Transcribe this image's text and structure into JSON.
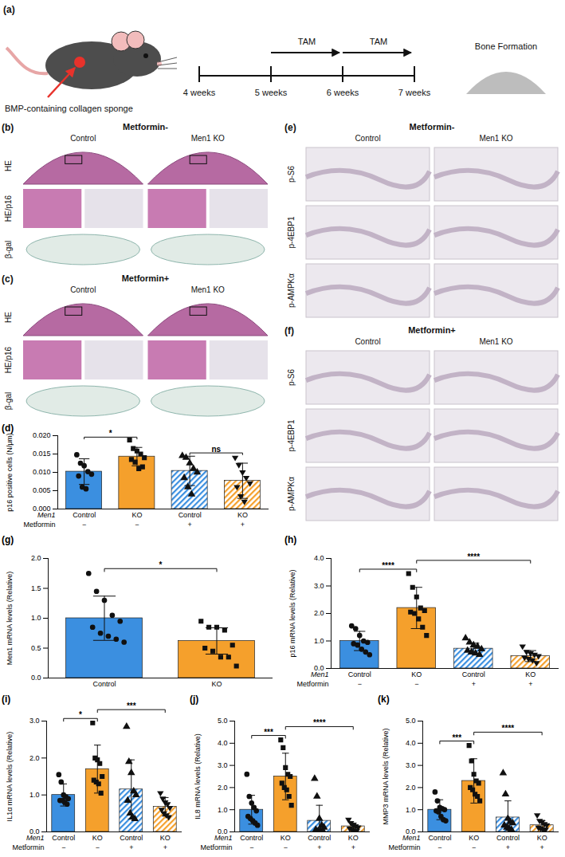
{
  "figure": {
    "panel_a": {
      "label": "(a)",
      "sponge_label": "BMP-containing collagen sponge",
      "treatments": [
        "TAM",
        "TAM"
      ],
      "timepoints": [
        "4 weeks",
        "5 weeks",
        "6 weeks",
        "7 weeks"
      ],
      "outcome": "Bone Formation"
    },
    "image_panels": [
      {
        "label": "(b)",
        "title": "Metformin-",
        "columns": [
          "Control",
          "Men1 KO"
        ],
        "rows": [
          "HE",
          "HE/p16",
          "β-gal"
        ]
      },
      {
        "label": "(c)",
        "title": "Metformin+",
        "columns": [
          "Control",
          "Men1 KO"
        ],
        "rows": [
          "HE",
          "HE/p16",
          "β-gal"
        ]
      },
      {
        "label": "(e)",
        "title": "Metformin-",
        "columns": [
          "Control",
          "Men1 KO"
        ],
        "rows": [
          "p-S6",
          "p-4EBP1",
          "p-AMPKα"
        ]
      },
      {
        "label": "(f)",
        "title": "Metformin+",
        "columns": [
          "Control",
          "Men1 KO"
        ],
        "rows": [
          "p-S6",
          "p-4EBP1",
          "p-AMPKα"
        ]
      }
    ]
  },
  "chart_data": [
    {
      "panel_label": "(d)",
      "type": "bar",
      "y_label": "p16 positive cells (N/μm)",
      "categories": [
        "Control",
        "KO",
        "Control",
        "KO"
      ],
      "categories_title": "Men1",
      "group_rows": [
        {
          "title": "Metformin",
          "labels": [
            "−",
            "−",
            "+",
            "+"
          ]
        }
      ],
      "values": [
        0.0102,
        0.0143,
        0.0104,
        0.0077
      ],
      "errors": [
        0.0035,
        0.0025,
        0.004,
        0.0048
      ],
      "points": [
        [
          0.0148,
          0.0125,
          0.0118,
          0.0102,
          0.0095,
          0.009,
          0.006,
          0.0055
        ],
        [
          0.0188,
          0.0165,
          0.0158,
          0.015,
          0.014,
          0.0135,
          0.0128,
          0.011,
          0.0115
        ],
        [
          0.0145,
          0.014,
          0.0125,
          0.011,
          0.01,
          0.0085,
          0.006,
          0.004
        ],
        [
          0.014,
          0.012,
          0.01,
          0.0085,
          0.007,
          0.006,
          0.0035,
          0.002
        ]
      ],
      "colors": [
        "#3b8fe0",
        "#f5a02c",
        "#3b8fe0",
        "#f5a02c"
      ],
      "markers": [
        "circle",
        "square",
        "triangle",
        "triangle-down"
      ],
      "ylim": [
        0,
        0.02
      ],
      "yticks": [
        {
          "value": 0,
          "label": "0.000"
        },
        {
          "value": 0.005,
          "label": "0.005"
        },
        {
          "value": 0.01,
          "label": "0.010"
        },
        {
          "value": 0.015,
          "label": "0.015"
        },
        {
          "value": 0.02,
          "label": "0.020"
        }
      ],
      "significance": [
        {
          "between": [
            0,
            1
          ],
          "label": "*"
        },
        {
          "between": [
            2,
            3
          ],
          "label": "ns"
        }
      ]
    },
    {
      "panel_label": "(g)",
      "type": "bar",
      "y_label": "Men1 mRNA levels (Relative)",
      "categories": [
        "Control",
        "KO"
      ],
      "values": [
        1.0,
        0.62
      ],
      "errors": [
        0.37,
        0.22
      ],
      "points": [
        [
          1.75,
          1.45,
          1.3,
          1.05,
          0.95,
          0.85,
          0.75,
          0.7,
          0.65,
          0.6
        ],
        [
          0.95,
          0.85,
          0.85,
          0.8,
          0.55,
          0.5,
          0.45,
          0.35,
          0.35,
          0.2
        ]
      ],
      "colors": [
        "#3b8fe0",
        "#f5a02c"
      ],
      "markers": [
        "circle",
        "square"
      ],
      "ylim": [
        0,
        2
      ],
      "yticks": [
        {
          "value": 0,
          "label": "0.0"
        },
        {
          "value": 0.5,
          "label": "0.5"
        },
        {
          "value": 1,
          "label": "1.0"
        },
        {
          "value": 1.5,
          "label": "1.5"
        },
        {
          "value": 2,
          "label": "2.0"
        }
      ],
      "significance": [
        {
          "between": [
            0,
            1
          ],
          "label": "*"
        }
      ]
    },
    {
      "panel_label": "(h)",
      "type": "bar",
      "y_label": "p16 mRNA levels (Relative)",
      "categories": [
        "Control",
        "KO",
        "Control",
        "KO"
      ],
      "categories_title": "Men1",
      "group_rows": [
        {
          "title": "Metformin",
          "labels": [
            "−",
            "−",
            "+",
            "+"
          ]
        }
      ],
      "values": [
        1.0,
        2.2,
        0.72,
        0.45
      ],
      "errors": [
        0.35,
        0.75,
        0.2,
        0.2
      ],
      "points": [
        [
          1.55,
          1.45,
          1.2,
          1.0,
          0.95,
          0.9,
          0.85,
          0.7,
          0.6,
          0.5
        ],
        [
          3.45,
          2.95,
          2.6,
          2.2,
          2.1,
          2.05,
          2.0,
          1.8,
          1.5,
          1.2
        ],
        [
          1.1,
          0.95,
          0.85,
          0.8,
          0.7,
          0.65,
          0.6,
          0.55,
          0.5
        ],
        [
          0.8,
          0.6,
          0.55,
          0.5,
          0.45,
          0.4,
          0.35,
          0.3,
          0.2
        ]
      ],
      "colors": [
        "#3b8fe0",
        "#f5a02c",
        "#3b8fe0",
        "#f5a02c"
      ],
      "markers": [
        "circle",
        "square",
        "triangle",
        "triangle-down"
      ],
      "ylim": [
        0,
        4
      ],
      "yticks": [
        {
          "value": 0,
          "label": "0.0"
        },
        {
          "value": 1,
          "label": "1.0"
        },
        {
          "value": 2,
          "label": "2.0"
        },
        {
          "value": 3,
          "label": "3.0"
        },
        {
          "value": 4,
          "label": "4.0"
        }
      ],
      "significance": [
        {
          "between": [
            0,
            1
          ],
          "label": "****"
        },
        {
          "between": [
            1,
            3
          ],
          "label": "****"
        }
      ]
    },
    {
      "panel_label": "(i)",
      "type": "bar",
      "y_label": "IL1α mRNA levels (Relative)",
      "categories": [
        "Control",
        "KO",
        "Control",
        "KO"
      ],
      "categories_title": "Men1",
      "group_rows": [
        {
          "title": "Metformin",
          "labels": [
            "−",
            "−",
            "+",
            "+"
          ]
        }
      ],
      "values": [
        1.0,
        1.7,
        1.15,
        0.68
      ],
      "errors": [
        0.3,
        0.65,
        0.8,
        0.25
      ],
      "points": [
        [
          1.55,
          1.35,
          1.0,
          0.95,
          0.9,
          0.85,
          0.85,
          0.8,
          0.75
        ],
        [
          2.95,
          2.0,
          1.95,
          1.85,
          1.5,
          1.4,
          1.35,
          1.3,
          1.05
        ],
        [
          2.85,
          1.9,
          1.6,
          1.1,
          1.0,
          0.85,
          0.5,
          0.4,
          0.35
        ],
        [
          1.05,
          0.9,
          0.8,
          0.75,
          0.65,
          0.6,
          0.5,
          0.45,
          0.4
        ]
      ],
      "colors": [
        "#3b8fe0",
        "#f5a02c",
        "#3b8fe0",
        "#f5a02c"
      ],
      "markers": [
        "circle",
        "square",
        "triangle",
        "triangle-down"
      ],
      "ylim": [
        0,
        3
      ],
      "yticks": [
        {
          "value": 0,
          "label": "0.0"
        },
        {
          "value": 1,
          "label": "1.0"
        },
        {
          "value": 2,
          "label": "2.0"
        },
        {
          "value": 3,
          "label": "3.0"
        }
      ],
      "significance": [
        {
          "between": [
            0,
            1
          ],
          "label": "*"
        },
        {
          "between": [
            1,
            3
          ],
          "label": "***"
        }
      ]
    },
    {
      "panel_label": "(j)",
      "type": "bar",
      "y_label": "IL8 mRNA levels (Relative)",
      "categories": [
        "Control",
        "KO",
        "Control",
        "KO"
      ],
      "categories_title": "Men1",
      "group_rows": [
        {
          "title": "Metformin",
          "labels": [
            "−",
            "−",
            "+",
            "+"
          ]
        }
      ],
      "values": [
        1.0,
        2.5,
        0.5,
        0.25
      ],
      "errors": [
        0.65,
        1.05,
        0.7,
        0.15
      ],
      "points": [
        [
          2.6,
          1.6,
          1.3,
          1.1,
          0.95,
          0.7,
          0.6,
          0.5,
          0.4,
          0.3
        ],
        [
          4.15,
          3.8,
          2.9,
          2.6,
          2.5,
          2.2,
          2.0,
          1.9,
          1.6,
          1.2
        ],
        [
          2.4,
          1.6,
          0.6,
          0.3,
          0.2,
          0.1,
          0.05,
          0.05,
          0.05
        ],
        [
          0.55,
          0.4,
          0.3,
          0.25,
          0.2,
          0.15,
          0.1,
          0.05,
          0.05
        ]
      ],
      "colors": [
        "#3b8fe0",
        "#f5a02c",
        "#3b8fe0",
        "#f5a02c"
      ],
      "markers": [
        "circle",
        "square",
        "triangle",
        "triangle-down"
      ],
      "ylim": [
        0,
        5
      ],
      "yticks": [
        {
          "value": 0,
          "label": "0.0"
        },
        {
          "value": 1,
          "label": "1.0"
        },
        {
          "value": 2,
          "label": "2.0"
        },
        {
          "value": 3,
          "label": "3.0"
        },
        {
          "value": 4,
          "label": "4.0"
        },
        {
          "value": 5,
          "label": "5.0"
        }
      ],
      "significance": [
        {
          "between": [
            0,
            1
          ],
          "label": "***"
        },
        {
          "between": [
            1,
            3
          ],
          "label": "****"
        }
      ]
    },
    {
      "panel_label": "(k)",
      "type": "bar",
      "y_label": "MMP3 mRNA levels (Relative)",
      "categories": [
        "Control",
        "KO",
        "Control",
        "KO"
      ],
      "categories_title": "Men1",
      "group_rows": [
        {
          "title": "Metformin",
          "labels": [
            "−",
            "−",
            "+",
            "+"
          ]
        }
      ],
      "values": [
        1.0,
        2.3,
        0.65,
        0.3
      ],
      "errors": [
        0.45,
        1.0,
        0.75,
        0.2
      ],
      "points": [
        [
          1.8,
          1.4,
          1.1,
          1.05,
          1.0,
          0.95,
          0.9,
          0.7,
          0.55,
          0.5
        ],
        [
          3.9,
          3.2,
          2.6,
          2.3,
          2.2,
          2.0,
          1.9,
          1.7,
          1.6,
          1.4
        ],
        [
          2.65,
          1.7,
          0.6,
          0.45,
          0.4,
          0.3,
          0.2,
          0.15,
          0.1
        ],
        [
          0.75,
          0.5,
          0.45,
          0.35,
          0.3,
          0.2,
          0.15,
          0.1,
          0.1
        ]
      ],
      "colors": [
        "#3b8fe0",
        "#f5a02c",
        "#3b8fe0",
        "#f5a02c"
      ],
      "markers": [
        "circle",
        "square",
        "triangle",
        "triangle-down"
      ],
      "ylim": [
        0,
        5
      ],
      "yticks": [
        {
          "value": 0,
          "label": "0.0"
        },
        {
          "value": 1,
          "label": "1.0"
        },
        {
          "value": 2,
          "label": "2.0"
        },
        {
          "value": 3,
          "label": "3.0"
        },
        {
          "value": 4,
          "label": "4.0"
        },
        {
          "value": 5,
          "label": "5.0"
        }
      ],
      "significance": [
        {
          "between": [
            0,
            1
          ],
          "label": "***"
        },
        {
          "between": [
            1,
            3
          ],
          "label": "****"
        }
      ]
    }
  ]
}
